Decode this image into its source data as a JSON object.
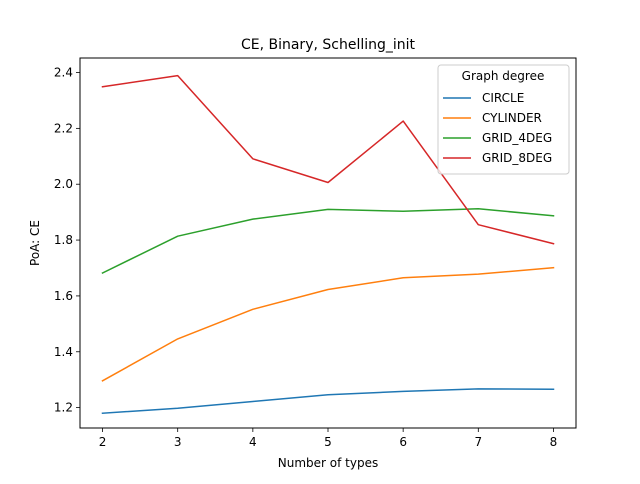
{
  "chart_data": {
    "type": "line",
    "title": "CE, Binary, Schelling_init",
    "xlabel": "Number of types",
    "ylabel": "PoA: CE",
    "x": [
      2,
      3,
      4,
      5,
      6,
      7,
      8
    ],
    "xlim": [
      1.7,
      8.3
    ],
    "ylim": [
      1.127,
      2.452
    ],
    "xticks": [
      2,
      3,
      4,
      5,
      6,
      7,
      8
    ],
    "yticks": [
      1.2,
      1.4,
      1.6,
      1.8,
      2.0,
      2.2,
      2.4
    ],
    "ytick_labels": [
      "1.2",
      "1.4",
      "1.6",
      "1.8",
      "2.0",
      "2.2",
      "2.4"
    ],
    "grid": false,
    "legend": {
      "title": "Graph degree",
      "position": "top-right"
    },
    "series": [
      {
        "name": "CIRCLE",
        "color": "#1f77b4",
        "values": [
          1.18,
          1.198,
          1.222,
          1.246,
          1.258,
          1.267,
          1.266
        ]
      },
      {
        "name": "CYLINDER",
        "color": "#ff7f0e",
        "values": [
          1.296,
          1.446,
          1.552,
          1.623,
          1.665,
          1.678,
          1.701
        ]
      },
      {
        "name": "GRID_4DEG",
        "color": "#2ca02c",
        "values": [
          1.682,
          1.814,
          1.875,
          1.91,
          1.903,
          1.912,
          1.887
        ]
      },
      {
        "name": "GRID_8DEG",
        "color": "#d62728",
        "values": [
          2.349,
          2.389,
          2.091,
          2.006,
          2.226,
          1.855,
          1.787
        ]
      }
    ]
  }
}
